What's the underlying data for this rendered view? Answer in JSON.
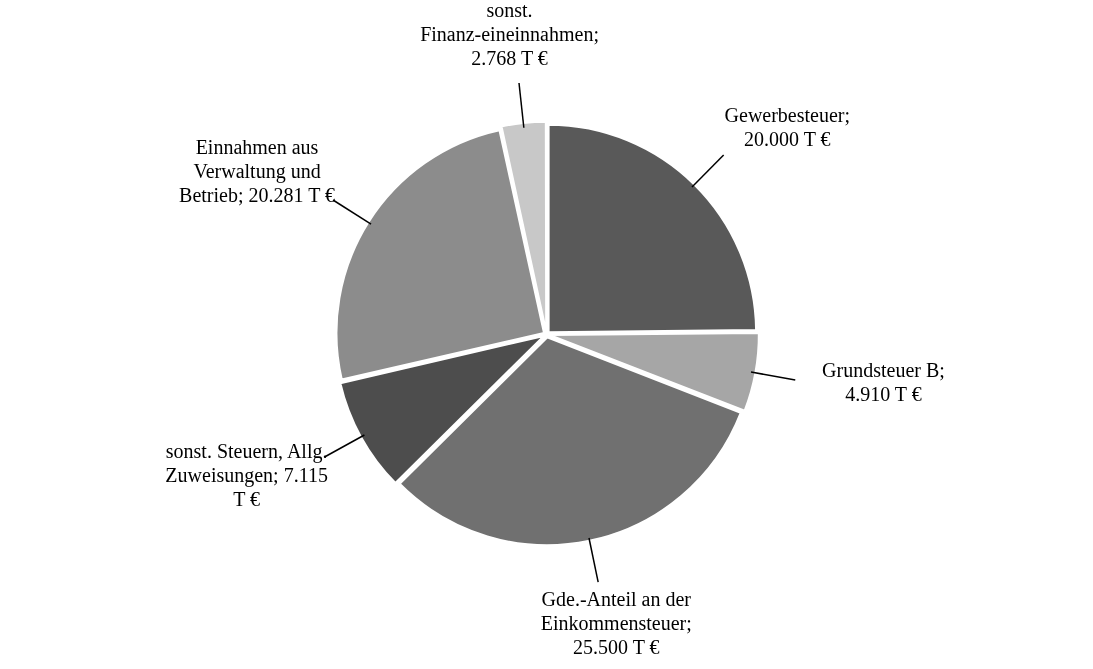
{
  "chart_data": {
    "type": "pie",
    "categories": [
      "Gewerbesteuer; 20.000 T €",
      "Grundsteuer B; 4.910 T €",
      "Gde.-Anteil an der Einkommensteuer; 25.500 T €",
      "sonst. Steuern, Allg. Zuweisungen; 7.115 T €",
      "Einnahmen aus Verwaltung und Betrieb; 20.281 T €",
      "sonst. Finanz-eineinnahmen; 2.768 T €"
    ],
    "values": [
      24.82,
      6.09,
      31.65,
      8.83,
      25.17,
      3.44
    ],
    "colors": [
      "#595959",
      "#a6a6a6",
      "#707070",
      "#4d4d4d",
      "#8c8c8c",
      "#c8c8c8"
    ],
    "legend": false
  }
}
